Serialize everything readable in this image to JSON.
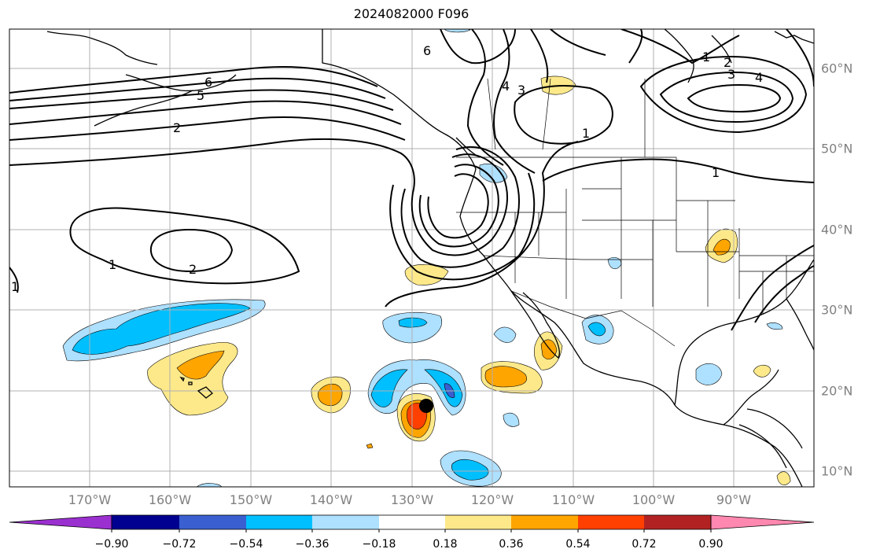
{
  "title": "2024082000 F096",
  "lon_labels": [
    "170°W",
    "160°W",
    "150°W",
    "140°W",
    "130°W",
    "120°W",
    "110°W",
    "100°W",
    "90°W"
  ],
  "lat_labels": [
    "60°N",
    "50°N",
    "40°N",
    "30°N",
    "20°N",
    "10°N"
  ],
  "contour_labels": [
    "6",
    "5",
    "2",
    "1",
    "2",
    "6",
    "4",
    "3",
    "1",
    "1",
    "2",
    "3",
    "4",
    "1",
    "1"
  ],
  "colorbar": {
    "ticks": [
      "−0.90",
      "−0.72",
      "−0.54",
      "−0.36",
      "−0.18",
      "0.18",
      "0.36",
      "0.54",
      "0.72",
      "0.90"
    ],
    "colors": {
      "under": "#9b30d0",
      "c1": "#000090",
      "c2": "#3a5fd0",
      "c3": "#00bfff",
      "c4": "#aee0ff",
      "c5": "#ffffff",
      "c6": "#fde98a",
      "c7": "#ffa500",
      "c8": "#ff4000",
      "c9": "#b22222",
      "over": "#ff88b0"
    }
  },
  "marker": "storm-center-dot"
}
